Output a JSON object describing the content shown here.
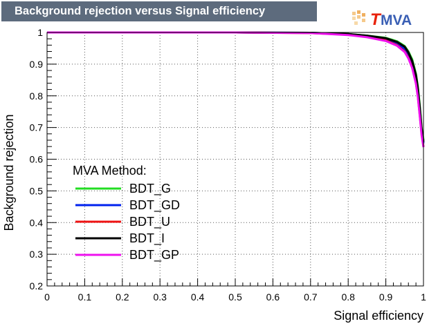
{
  "title": "Background rejection versus Signal efficiency",
  "logo": {
    "text_t": "T",
    "text_mva": "MVA",
    "t_color": "#e8220a",
    "mva_color": "#3a5fb4"
  },
  "chart_data": {
    "type": "line",
    "title": "Background rejection versus Signal efficiency",
    "xlabel": "Signal efficiency",
    "ylabel": "Background rejection",
    "xlim": [
      0,
      1
    ],
    "ylim": [
      0.2,
      1
    ],
    "xticks": [
      0,
      0.1,
      0.2,
      0.3,
      0.4,
      0.5,
      0.6,
      0.7,
      0.8,
      0.9,
      1
    ],
    "xtick_labels": [
      "0",
      "0.1",
      "0.2",
      "0.3",
      "0.4",
      "0.5",
      "0.6",
      "0.7",
      "0.8",
      "0.9",
      "1"
    ],
    "yticks": [
      0.2,
      0.3,
      0.4,
      0.5,
      0.6,
      0.7,
      0.8,
      0.9,
      1
    ],
    "ytick_labels": [
      "0.2",
      "0.3",
      "0.4",
      "0.5",
      "0.6",
      "0.7",
      "0.8",
      "0.9",
      "1"
    ],
    "grid": true,
    "legend_title": "MVA Method:",
    "legend_position": "bottom-left",
    "series": [
      {
        "name": "BDT_G",
        "color": "#22dd22",
        "points": [
          [
            0,
            1
          ],
          [
            0.5,
            1
          ],
          [
            0.7,
            0.999
          ],
          [
            0.8,
            0.995
          ],
          [
            0.85,
            0.99
          ],
          [
            0.9,
            0.983
          ],
          [
            0.93,
            0.972
          ],
          [
            0.95,
            0.957
          ],
          [
            0.96,
            0.94
          ],
          [
            0.97,
            0.915
          ],
          [
            0.98,
            0.87
          ],
          [
            0.985,
            0.83
          ],
          [
            0.99,
            0.77
          ],
          [
            0.995,
            0.7
          ],
          [
            1,
            0.66
          ]
        ]
      },
      {
        "name": "BDT_GD",
        "color": "#0022ee",
        "points": [
          [
            0,
            1
          ],
          [
            0.5,
            1
          ],
          [
            0.7,
            0.999
          ],
          [
            0.8,
            0.994
          ],
          [
            0.85,
            0.988
          ],
          [
            0.9,
            0.978
          ],
          [
            0.93,
            0.965
          ],
          [
            0.95,
            0.948
          ],
          [
            0.96,
            0.93
          ],
          [
            0.97,
            0.905
          ],
          [
            0.98,
            0.86
          ],
          [
            0.985,
            0.82
          ],
          [
            0.99,
            0.76
          ],
          [
            0.995,
            0.69
          ],
          [
            1,
            0.65
          ]
        ]
      },
      {
        "name": "BDT_U",
        "color": "#ee1111",
        "points": [
          [
            0,
            1
          ],
          [
            0.5,
            1
          ],
          [
            0.7,
            0.998
          ],
          [
            0.8,
            0.993
          ],
          [
            0.85,
            0.986
          ],
          [
            0.9,
            0.975
          ],
          [
            0.93,
            0.96
          ],
          [
            0.95,
            0.94
          ],
          [
            0.96,
            0.92
          ],
          [
            0.97,
            0.89
          ],
          [
            0.98,
            0.84
          ],
          [
            0.985,
            0.8
          ],
          [
            0.99,
            0.74
          ],
          [
            0.995,
            0.68
          ],
          [
            1,
            0.64
          ]
        ]
      },
      {
        "name": "BDT_I",
        "color": "#000000",
        "points": [
          [
            0,
            1
          ],
          [
            0.5,
            1
          ],
          [
            0.7,
            0.999
          ],
          [
            0.8,
            0.995
          ],
          [
            0.85,
            0.99
          ],
          [
            0.9,
            0.982
          ],
          [
            0.93,
            0.97
          ],
          [
            0.95,
            0.955
          ],
          [
            0.96,
            0.937
          ],
          [
            0.97,
            0.91
          ],
          [
            0.98,
            0.865
          ],
          [
            0.985,
            0.825
          ],
          [
            0.99,
            0.765
          ],
          [
            0.995,
            0.695
          ],
          [
            1,
            0.655
          ]
        ]
      },
      {
        "name": "BDT_GP",
        "color": "#ee11ee",
        "points": [
          [
            0,
            1
          ],
          [
            0.5,
            1
          ],
          [
            0.7,
            0.998
          ],
          [
            0.8,
            0.992
          ],
          [
            0.85,
            0.985
          ],
          [
            0.9,
            0.973
          ],
          [
            0.93,
            0.958
          ],
          [
            0.95,
            0.938
          ],
          [
            0.96,
            0.918
          ],
          [
            0.97,
            0.888
          ],
          [
            0.98,
            0.838
          ],
          [
            0.985,
            0.797
          ],
          [
            0.99,
            0.737
          ],
          [
            0.995,
            0.675
          ],
          [
            1,
            0.638
          ]
        ]
      }
    ]
  }
}
